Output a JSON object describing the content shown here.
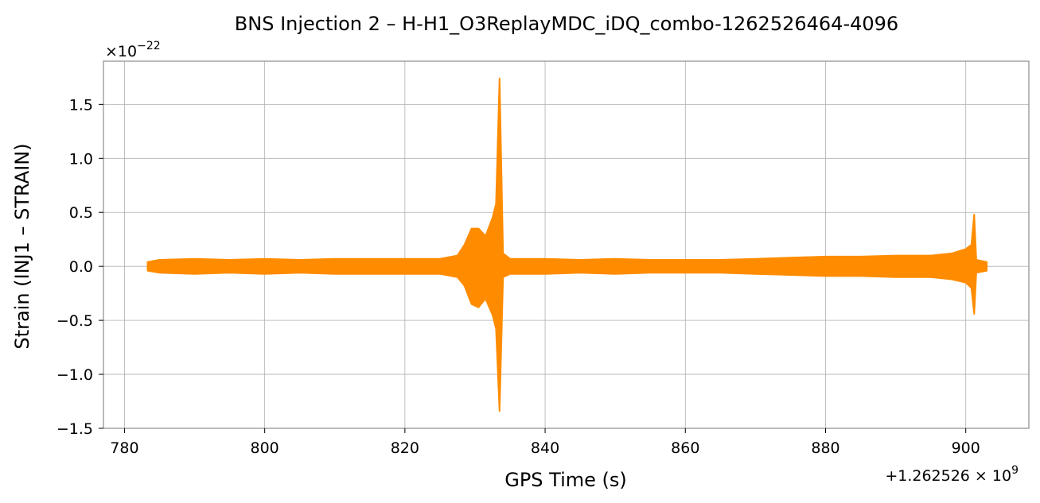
{
  "chart_data": {
    "type": "line",
    "title": "BNS Injection 2 – H-H1_O3ReplayMDC_iDQ_combo-1262526464-4096",
    "xlabel": "GPS Time (s)",
    "ylabel": "Strain (INJ1 – STRAIN)",
    "y_multiplier_base": "×10",
    "y_multiplier_exp": "−22",
    "x_offset_base": "+1.262526 × 10",
    "x_offset_exp": "9",
    "xlim": [
      777,
      909
    ],
    "ylim": [
      -1.5,
      1.9
    ],
    "x_ticks": [
      780,
      800,
      820,
      840,
      860,
      880,
      900
    ],
    "x_tick_labels": [
      "780",
      "800",
      "820",
      "840",
      "860",
      "880",
      "900"
    ],
    "y_ticks": [
      -1.5,
      -1.0,
      -0.5,
      0.0,
      0.5,
      1.0,
      1.5
    ],
    "y_tick_labels": [
      "−1.5",
      "−1.0",
      "−0.5",
      "0.0",
      "0.5",
      "1.0",
      "1.5"
    ],
    "grid": true,
    "series": [
      {
        "color": "#ff8c00",
        "envelope": [
          {
            "x": 783.3,
            "upper": 0.04,
            "lower": -0.04
          },
          {
            "x": 785,
            "upper": 0.06,
            "lower": -0.06
          },
          {
            "x": 790,
            "upper": 0.07,
            "lower": -0.07
          },
          {
            "x": 795,
            "upper": 0.06,
            "lower": -0.06
          },
          {
            "x": 800,
            "upper": 0.07,
            "lower": -0.07
          },
          {
            "x": 805,
            "upper": 0.06,
            "lower": -0.06
          },
          {
            "x": 810,
            "upper": 0.07,
            "lower": -0.07
          },
          {
            "x": 815,
            "upper": 0.07,
            "lower": -0.07
          },
          {
            "x": 820,
            "upper": 0.07,
            "lower": -0.07
          },
          {
            "x": 825,
            "upper": 0.07,
            "lower": -0.07
          },
          {
            "x": 827.5,
            "upper": 0.1,
            "lower": -0.1
          },
          {
            "x": 828.5,
            "upper": 0.2,
            "lower": -0.18
          },
          {
            "x": 829.5,
            "upper": 0.35,
            "lower": -0.35
          },
          {
            "x": 830.5,
            "upper": 0.35,
            "lower": -0.38
          },
          {
            "x": 831.5,
            "upper": 0.28,
            "lower": -0.3
          },
          {
            "x": 832.5,
            "upper": 0.45,
            "lower": -0.45
          },
          {
            "x": 833.0,
            "upper": 0.58,
            "lower": -0.58
          },
          {
            "x": 833.5,
            "upper": 1.74,
            "lower": -1.34
          },
          {
            "x": 834.0,
            "upper": 0.12,
            "lower": -0.1
          },
          {
            "x": 835,
            "upper": 0.07,
            "lower": -0.07
          },
          {
            "x": 840,
            "upper": 0.07,
            "lower": -0.07
          },
          {
            "x": 845,
            "upper": 0.06,
            "lower": -0.06
          },
          {
            "x": 850,
            "upper": 0.07,
            "lower": -0.07
          },
          {
            "x": 855,
            "upper": 0.06,
            "lower": -0.06
          },
          {
            "x": 860,
            "upper": 0.06,
            "lower": -0.06
          },
          {
            "x": 865,
            "upper": 0.06,
            "lower": -0.06
          },
          {
            "x": 870,
            "upper": 0.07,
            "lower": -0.07
          },
          {
            "x": 875,
            "upper": 0.08,
            "lower": -0.08
          },
          {
            "x": 880,
            "upper": 0.09,
            "lower": -0.09
          },
          {
            "x": 885,
            "upper": 0.09,
            "lower": -0.09
          },
          {
            "x": 890,
            "upper": 0.1,
            "lower": -0.1
          },
          {
            "x": 895,
            "upper": 0.1,
            "lower": -0.1
          },
          {
            "x": 898,
            "upper": 0.12,
            "lower": -0.12
          },
          {
            "x": 900,
            "upper": 0.16,
            "lower": -0.15
          },
          {
            "x": 900.8,
            "upper": 0.2,
            "lower": -0.2
          },
          {
            "x": 901.2,
            "upper": 0.48,
            "lower": -0.44
          },
          {
            "x": 901.5,
            "upper": 0.06,
            "lower": -0.06
          },
          {
            "x": 903.0,
            "upper": 0.04,
            "lower": -0.04
          }
        ]
      }
    ]
  }
}
